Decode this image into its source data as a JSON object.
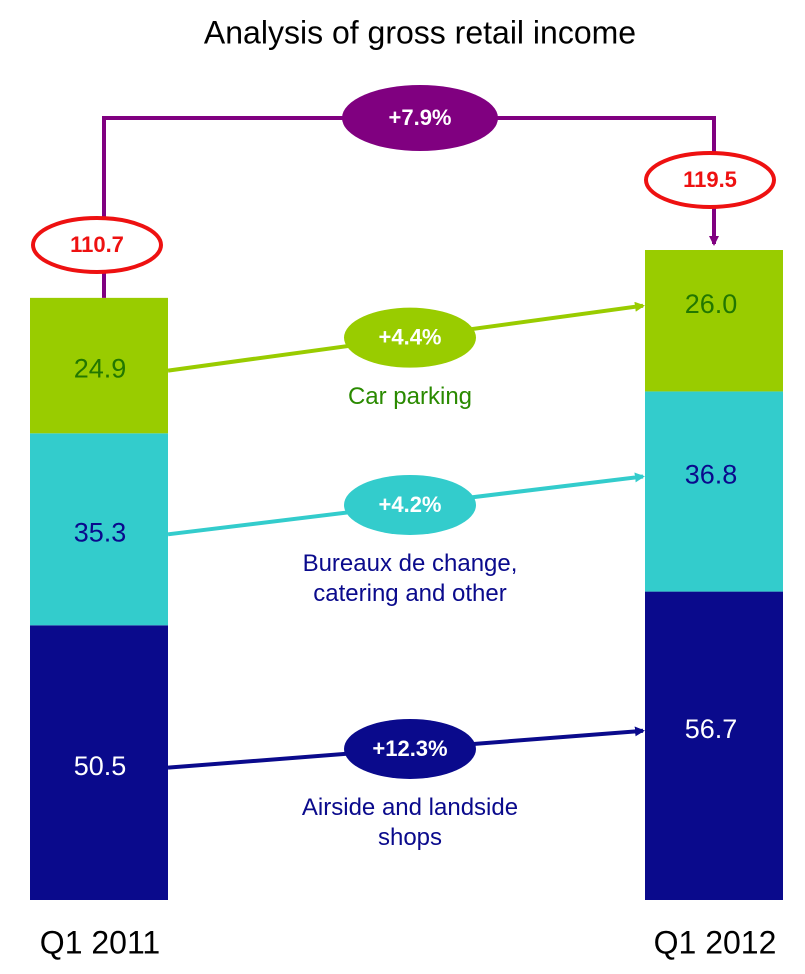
{
  "chart_data": {
    "type": "stacked_bar",
    "title": "Analysis of gross retail income",
    "categories": [
      "Q1 2011",
      "Q1 2012"
    ],
    "series": [
      {
        "name": "Airside and landside shops",
        "color": "#0a0a8c",
        "label_color": "#ffffff",
        "name_color": "#0a0a8c",
        "values": [
          50.5,
          56.7
        ],
        "change_label": "+12.3%"
      },
      {
        "name": "Bureaux de change, catering and other",
        "color": "#33cccc",
        "label_color": "#0a0a8c",
        "name_color": "#0a0a8c",
        "values": [
          35.3,
          36.8
        ],
        "change_label": "+4.2%"
      },
      {
        "name": "Car parking",
        "color": "#99cc00",
        "label_color": "#227700",
        "name_color": "#2a8a00",
        "values": [
          24.9,
          26.0
        ],
        "value_labels": [
          "24.9",
          "26.0"
        ],
        "change_label": "+4.4%"
      }
    ],
    "totals": [
      110.7,
      119.5
    ],
    "total_change_label": "+7.9%",
    "total_color": "#800080",
    "total_outline": "#ee1111"
  }
}
